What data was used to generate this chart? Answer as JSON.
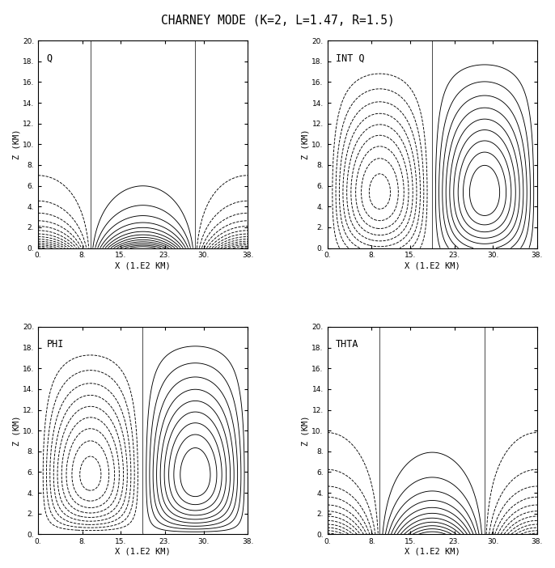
{
  "title": "CHARNEY MODE (K=2, L=1.47, R=1.5)",
  "labels": [
    "Q",
    "INT Q",
    "PHI",
    "THTA"
  ],
  "xlabel": "X (1.E2 KM)",
  "ylabel": "Z (KM)",
  "xlim": [
    0,
    38
  ],
  "ylim": [
    0,
    20
  ],
  "xticks": [
    0,
    8,
    15,
    23,
    30,
    38
  ],
  "yticks": [
    0,
    2,
    4,
    6,
    8,
    10,
    12,
    14,
    16,
    18,
    20
  ],
  "background": "#ffffff"
}
